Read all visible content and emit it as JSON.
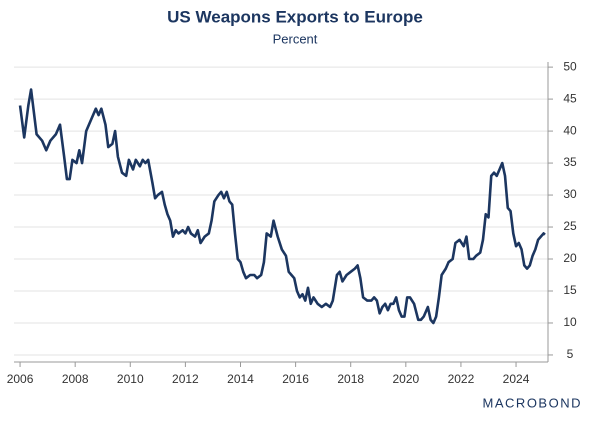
{
  "chart_data": {
    "type": "line",
    "title": "US Weapons Exports to Europe",
    "subtitle": "Percent",
    "source_logo": "MACROBOND",
    "x": [
      2006.0,
      2006.15,
      2006.3,
      2006.4,
      2006.6,
      2006.8,
      2006.95,
      2007.1,
      2007.3,
      2007.45,
      2007.6,
      2007.7,
      2007.8,
      2007.9,
      2008.05,
      2008.15,
      2008.25,
      2008.4,
      2008.6,
      2008.75,
      2008.85,
      2008.95,
      2009.1,
      2009.2,
      2009.35,
      2009.45,
      2009.55,
      2009.7,
      2009.85,
      2009.95,
      2010.1,
      2010.2,
      2010.35,
      2010.45,
      2010.55,
      2010.65,
      2010.8,
      2010.9,
      2011.0,
      2011.15,
      2011.25,
      2011.35,
      2011.45,
      2011.55,
      2011.65,
      2011.75,
      2011.9,
      2012.0,
      2012.1,
      2012.2,
      2012.35,
      2012.45,
      2012.55,
      2012.7,
      2012.85,
      2012.95,
      2013.05,
      2013.2,
      2013.3,
      2013.4,
      2013.5,
      2013.6,
      2013.7,
      2013.8,
      2013.9,
      2014.0,
      2014.1,
      2014.2,
      2014.35,
      2014.5,
      2014.6,
      2014.75,
      2014.85,
      2014.95,
      2015.1,
      2015.2,
      2015.35,
      2015.5,
      2015.65,
      2015.75,
      2015.85,
      2015.95,
      2016.05,
      2016.15,
      2016.25,
      2016.35,
      2016.45,
      2016.55,
      2016.65,
      2016.8,
      2016.95,
      2017.1,
      2017.25,
      2017.35,
      2017.5,
      2017.6,
      2017.7,
      2017.85,
      2018.0,
      2018.15,
      2018.25,
      2018.35,
      2018.45,
      2018.6,
      2018.75,
      2018.85,
      2018.95,
      2019.05,
      2019.15,
      2019.25,
      2019.35,
      2019.45,
      2019.55,
      2019.65,
      2019.75,
      2019.85,
      2019.95,
      2020.05,
      2020.15,
      2020.3,
      2020.45,
      2020.55,
      2020.65,
      2020.8,
      2020.9,
      2021.0,
      2021.1,
      2021.2,
      2021.3,
      2021.45,
      2021.55,
      2021.7,
      2021.8,
      2021.95,
      2022.1,
      2022.2,
      2022.3,
      2022.45,
      2022.55,
      2022.7,
      2022.8,
      2022.9,
      2023.0,
      2023.1,
      2023.2,
      2023.3,
      2023.4,
      2023.5,
      2023.6,
      2023.7,
      2023.8,
      2023.9,
      2024.0,
      2024.1,
      2024.2,
      2024.3,
      2024.4,
      2024.5,
      2024.6,
      2024.7,
      2024.8,
      2024.9,
      2025.0,
      2025.05
    ],
    "series": [
      {
        "name": "US Weapons Exports to Europe",
        "color": "#1c3660",
        "values": [
          44,
          39,
          44,
          46.5,
          39.5,
          38.5,
          37,
          38.5,
          39.5,
          41,
          36,
          32.5,
          32.5,
          35.5,
          35,
          37,
          35,
          40,
          42,
          43.5,
          42.5,
          43.5,
          41,
          37.5,
          38,
          40,
          36,
          33.5,
          33,
          35.5,
          34,
          35.5,
          34.5,
          35.5,
          35,
          35.5,
          32,
          29.5,
          30,
          30.5,
          28.5,
          27,
          26,
          23.5,
          24.5,
          24,
          24.5,
          24,
          25,
          24,
          23.5,
          24.5,
          22.5,
          23.5,
          24,
          26,
          29,
          30,
          30.5,
          29.5,
          30.5,
          29,
          28.5,
          24,
          20,
          19.5,
          18,
          17,
          17.5,
          17.5,
          17,
          17.5,
          19.5,
          24,
          23.5,
          26,
          23.5,
          21.5,
          20.5,
          18,
          17.5,
          17,
          15,
          14,
          14.5,
          13.5,
          15.5,
          13,
          14,
          13,
          12.5,
          13,
          12.5,
          13.5,
          17.5,
          18,
          16.5,
          17.5,
          18,
          18.5,
          19,
          17,
          14,
          13.5,
          13.5,
          14,
          13.5,
          11.5,
          12.5,
          13,
          12,
          13,
          13,
          14,
          12,
          11,
          11,
          14,
          14,
          13,
          10.5,
          10.5,
          11,
          12.5,
          10.5,
          10,
          11,
          14,
          17.5,
          18.5,
          19.5,
          20,
          22.5,
          23,
          22,
          23.5,
          20,
          20,
          20.5,
          21,
          23,
          27,
          26.5,
          33,
          33.5,
          33,
          34,
          35,
          33,
          28,
          27.5,
          24,
          22,
          22.5,
          21.5,
          19,
          18.5,
          19,
          20.5,
          21.5,
          23,
          23.5,
          24,
          23.8
        ]
      }
    ],
    "xlim": [
      2005.78,
      2025.16
    ],
    "xticks": [
      2006,
      2008,
      2010,
      2012,
      2014,
      2016,
      2018,
      2020,
      2022,
      2024
    ],
    "ylim": [
      3.9,
      50.8
    ],
    "yticks": [
      5,
      10,
      15,
      20,
      25,
      30,
      35,
      40,
      45,
      50
    ],
    "grid": true
  }
}
